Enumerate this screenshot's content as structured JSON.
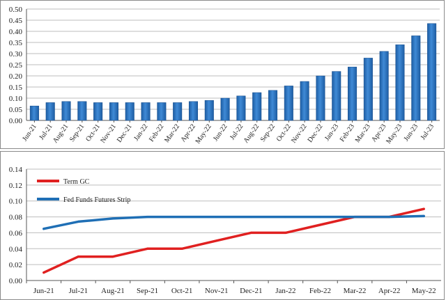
{
  "chart_data": [
    {
      "type": "bar",
      "categories": [
        "Jun-21",
        "Jul-21",
        "Aug-21",
        "Sep-21",
        "Oct-21",
        "Nov-21",
        "Dec-21",
        "Jan-22",
        "Feb-22",
        "Mar-22",
        "Apr-22",
        "May-22",
        "Jun-22",
        "Jul-22",
        "Aug-22",
        "Sep-22",
        "Oct-22",
        "Nov-22",
        "Dec-22",
        "Jan-23",
        "Feb-23",
        "Mar-23",
        "Apr-23",
        "May-23",
        "Jun-23",
        "Jul-23"
      ],
      "values": [
        0.065,
        0.08,
        0.085,
        0.085,
        0.08,
        0.08,
        0.08,
        0.08,
        0.08,
        0.08,
        0.085,
        0.09,
        0.1,
        0.11,
        0.125,
        0.135,
        0.155,
        0.175,
        0.2,
        0.22,
        0.24,
        0.28,
        0.31,
        0.34,
        0.38,
        0.435
      ],
      "ylim": [
        0,
        0.5
      ],
      "yticks": [
        "0.00",
        "0.05",
        "0.10",
        "0.15",
        "0.20",
        "0.25",
        "0.30",
        "0.35",
        "0.40",
        "0.45",
        "0.50"
      ],
      "grid": true,
      "color": "#2e78c2"
    },
    {
      "type": "line",
      "categories": [
        "Jun-21",
        "Jul-21",
        "Aug-21",
        "Sep-21",
        "Oct-21",
        "Nov-21",
        "Dec-21",
        "Jan-22",
        "Feb-22",
        "Mar-22",
        "Apr-22",
        "May-22"
      ],
      "series": [
        {
          "name": "Term GC",
          "color": "#e02020",
          "values": [
            0.01,
            0.03,
            0.03,
            0.04,
            0.04,
            0.05,
            0.06,
            0.06,
            0.07,
            0.08,
            0.08,
            0.09
          ]
        },
        {
          "name": "Fed Funds Futures Strip",
          "color": "#1f6fb5",
          "values": [
            0.065,
            0.074,
            0.078,
            0.08,
            0.08,
            0.08,
            0.08,
            0.08,
            0.08,
            0.08,
            0.08,
            0.081
          ]
        }
      ],
      "ylim": [
        0,
        0.14
      ],
      "yticks": [
        "0.00",
        "0.02",
        "0.04",
        "0.06",
        "0.08",
        "0.10",
        "0.12",
        "0.14"
      ],
      "grid": true,
      "legend": "top-left"
    }
  ]
}
